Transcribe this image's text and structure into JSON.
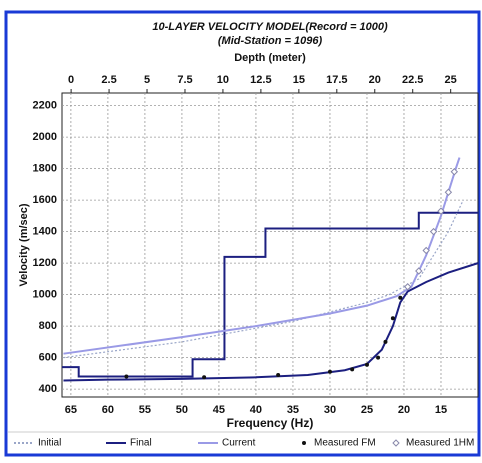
{
  "chart_data": {
    "type": "line",
    "title": "10-LAYER VELOCITY MODEL(Record = 1000)",
    "subtitle": "(Mid-Station = 1096)",
    "x_label": "Frequency (Hz)",
    "x2_label": "Depth (meter)",
    "y_label": "Velocity (m/sec)",
    "xlim": [
      66.2,
      10
    ],
    "xticks": [
      65,
      60,
      55,
      50,
      45,
      40,
      35,
      30,
      25,
      20,
      15
    ],
    "x2lim": [
      -0.6,
      26.8
    ],
    "x2ticks": [
      0,
      2.5,
      5,
      7.5,
      10,
      12.5,
      15,
      17.5,
      20,
      22.5,
      25
    ],
    "ylim": [
      350,
      2280
    ],
    "yticks": [
      400,
      600,
      800,
      1000,
      1200,
      1400,
      1600,
      1800,
      2000,
      2200
    ],
    "grid": true,
    "series": [
      {
        "name": "Initial",
        "color": "#9aa6c8",
        "style": "dotted",
        "x": [
          66,
          50,
          35,
          25,
          22,
          18,
          14,
          12
        ],
        "values": [
          600,
          700,
          830,
          950,
          1000,
          1100,
          1400,
          1600
        ]
      },
      {
        "name": "Final",
        "color": "#1c1f80",
        "style": "solid",
        "x": [
          66,
          60,
          50,
          40,
          33,
          28,
          25,
          23,
          21.5,
          20.5,
          19.5,
          17,
          14,
          10
        ],
        "values": [
          455,
          460,
          465,
          475,
          490,
          520,
          560,
          650,
          800,
          950,
          1020,
          1080,
          1140,
          1200
        ]
      },
      {
        "name": "Current",
        "color": "#9a9ae6",
        "style": "solid",
        "x": [
          66,
          50,
          40,
          30,
          25,
          21,
          19,
          17,
          15,
          13,
          12.5
        ],
        "values": [
          625,
          730,
          800,
          880,
          930,
          990,
          1050,
          1250,
          1500,
          1800,
          1870
        ]
      },
      {
        "name": "Measured FM",
        "color": "#111111",
        "style": "dot",
        "x": [
          57.5,
          47,
          37,
          30,
          27,
          25,
          23.5,
          22.5,
          21.5,
          20.5
        ],
        "values": [
          480,
          475,
          490,
          510,
          525,
          555,
          600,
          700,
          850,
          980
        ]
      },
      {
        "name": "Measured 1HM",
        "color": "#8888aa",
        "style": "diamond",
        "x": [
          19.5,
          18,
          17,
          16,
          15,
          14,
          13.2
        ],
        "values": [
          1050,
          1150,
          1280,
          1400,
          1530,
          1650,
          1780
        ]
      }
    ],
    "model": {
      "color": "#1c1f80",
      "axis": "x2",
      "x": [
        -0.6,
        0.5,
        0.5,
        8,
        8,
        10.1,
        10.1,
        12.8,
        12.8,
        22.9,
        22.9,
        26.8
      ],
      "values": [
        540,
        540,
        480,
        480,
        590,
        590,
        1240,
        1240,
        1420,
        1420,
        1520,
        1520
      ]
    }
  }
}
